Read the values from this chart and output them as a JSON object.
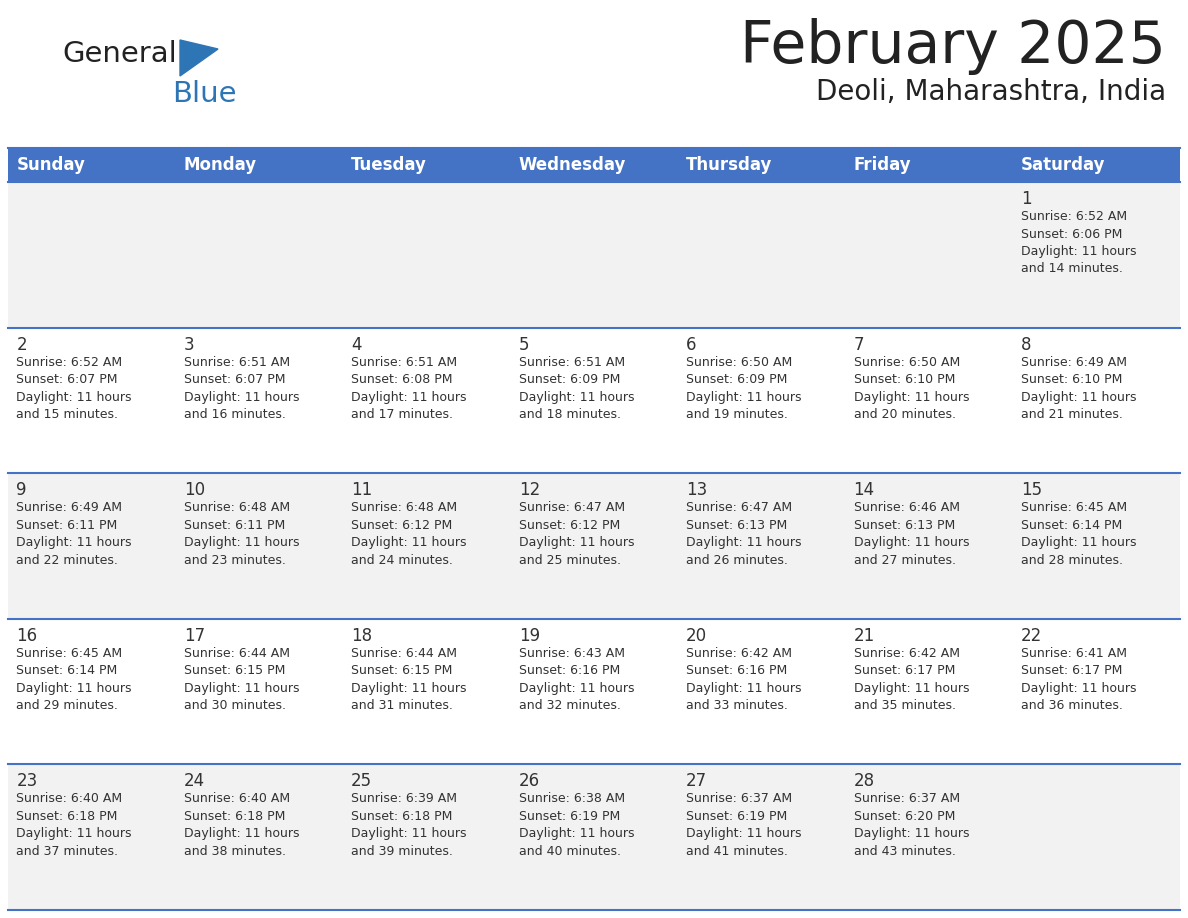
{
  "title": "February 2025",
  "subtitle": "Deoli, Maharashtra, India",
  "days_of_week": [
    "Sunday",
    "Monday",
    "Tuesday",
    "Wednesday",
    "Thursday",
    "Friday",
    "Saturday"
  ],
  "header_bg_color": "#4472C4",
  "header_text_color": "#FFFFFF",
  "cell_bg_color_odd": "#F2F2F2",
  "cell_bg_color_even": "#FFFFFF",
  "row_line_color": "#4472C4",
  "text_color": "#333333",
  "day_num_color": "#333333",
  "title_color": "#222222",
  "logo_general_color": "#222222",
  "logo_blue_color": "#2E75B6",
  "calendar_data": [
    [
      {
        "day": null,
        "sunrise": null,
        "sunset": null,
        "daylight": null
      },
      {
        "day": null,
        "sunrise": null,
        "sunset": null,
        "daylight": null
      },
      {
        "day": null,
        "sunrise": null,
        "sunset": null,
        "daylight": null
      },
      {
        "day": null,
        "sunrise": null,
        "sunset": null,
        "daylight": null
      },
      {
        "day": null,
        "sunrise": null,
        "sunset": null,
        "daylight": null
      },
      {
        "day": null,
        "sunrise": null,
        "sunset": null,
        "daylight": null
      },
      {
        "day": 1,
        "sunrise": "6:52 AM",
        "sunset": "6:06 PM",
        "daylight": "11 hours and 14 minutes."
      }
    ],
    [
      {
        "day": 2,
        "sunrise": "6:52 AM",
        "sunset": "6:07 PM",
        "daylight": "11 hours and 15 minutes."
      },
      {
        "day": 3,
        "sunrise": "6:51 AM",
        "sunset": "6:07 PM",
        "daylight": "11 hours and 16 minutes."
      },
      {
        "day": 4,
        "sunrise": "6:51 AM",
        "sunset": "6:08 PM",
        "daylight": "11 hours and 17 minutes."
      },
      {
        "day": 5,
        "sunrise": "6:51 AM",
        "sunset": "6:09 PM",
        "daylight": "11 hours and 18 minutes."
      },
      {
        "day": 6,
        "sunrise": "6:50 AM",
        "sunset": "6:09 PM",
        "daylight": "11 hours and 19 minutes."
      },
      {
        "day": 7,
        "sunrise": "6:50 AM",
        "sunset": "6:10 PM",
        "daylight": "11 hours and 20 minutes."
      },
      {
        "day": 8,
        "sunrise": "6:49 AM",
        "sunset": "6:10 PM",
        "daylight": "11 hours and 21 minutes."
      }
    ],
    [
      {
        "day": 9,
        "sunrise": "6:49 AM",
        "sunset": "6:11 PM",
        "daylight": "11 hours and 22 minutes."
      },
      {
        "day": 10,
        "sunrise": "6:48 AM",
        "sunset": "6:11 PM",
        "daylight": "11 hours and 23 minutes."
      },
      {
        "day": 11,
        "sunrise": "6:48 AM",
        "sunset": "6:12 PM",
        "daylight": "11 hours and 24 minutes."
      },
      {
        "day": 12,
        "sunrise": "6:47 AM",
        "sunset": "6:12 PM",
        "daylight": "11 hours and 25 minutes."
      },
      {
        "day": 13,
        "sunrise": "6:47 AM",
        "sunset": "6:13 PM",
        "daylight": "11 hours and 26 minutes."
      },
      {
        "day": 14,
        "sunrise": "6:46 AM",
        "sunset": "6:13 PM",
        "daylight": "11 hours and 27 minutes."
      },
      {
        "day": 15,
        "sunrise": "6:45 AM",
        "sunset": "6:14 PM",
        "daylight": "11 hours and 28 minutes."
      }
    ],
    [
      {
        "day": 16,
        "sunrise": "6:45 AM",
        "sunset": "6:14 PM",
        "daylight": "11 hours and 29 minutes."
      },
      {
        "day": 17,
        "sunrise": "6:44 AM",
        "sunset": "6:15 PM",
        "daylight": "11 hours and 30 minutes."
      },
      {
        "day": 18,
        "sunrise": "6:44 AM",
        "sunset": "6:15 PM",
        "daylight": "11 hours and 31 minutes."
      },
      {
        "day": 19,
        "sunrise": "6:43 AM",
        "sunset": "6:16 PM",
        "daylight": "11 hours and 32 minutes."
      },
      {
        "day": 20,
        "sunrise": "6:42 AM",
        "sunset": "6:16 PM",
        "daylight": "11 hours and 33 minutes."
      },
      {
        "day": 21,
        "sunrise": "6:42 AM",
        "sunset": "6:17 PM",
        "daylight": "11 hours and 35 minutes."
      },
      {
        "day": 22,
        "sunrise": "6:41 AM",
        "sunset": "6:17 PM",
        "daylight": "11 hours and 36 minutes."
      }
    ],
    [
      {
        "day": 23,
        "sunrise": "6:40 AM",
        "sunset": "6:18 PM",
        "daylight": "11 hours and 37 minutes."
      },
      {
        "day": 24,
        "sunrise": "6:40 AM",
        "sunset": "6:18 PM",
        "daylight": "11 hours and 38 minutes."
      },
      {
        "day": 25,
        "sunrise": "6:39 AM",
        "sunset": "6:18 PM",
        "daylight": "11 hours and 39 minutes."
      },
      {
        "day": 26,
        "sunrise": "6:38 AM",
        "sunset": "6:19 PM",
        "daylight": "11 hours and 40 minutes."
      },
      {
        "day": 27,
        "sunrise": "6:37 AM",
        "sunset": "6:19 PM",
        "daylight": "11 hours and 41 minutes."
      },
      {
        "day": 28,
        "sunrise": "6:37 AM",
        "sunset": "6:20 PM",
        "daylight": "11 hours and 43 minutes."
      },
      {
        "day": null,
        "sunrise": null,
        "sunset": null,
        "daylight": null
      }
    ]
  ]
}
